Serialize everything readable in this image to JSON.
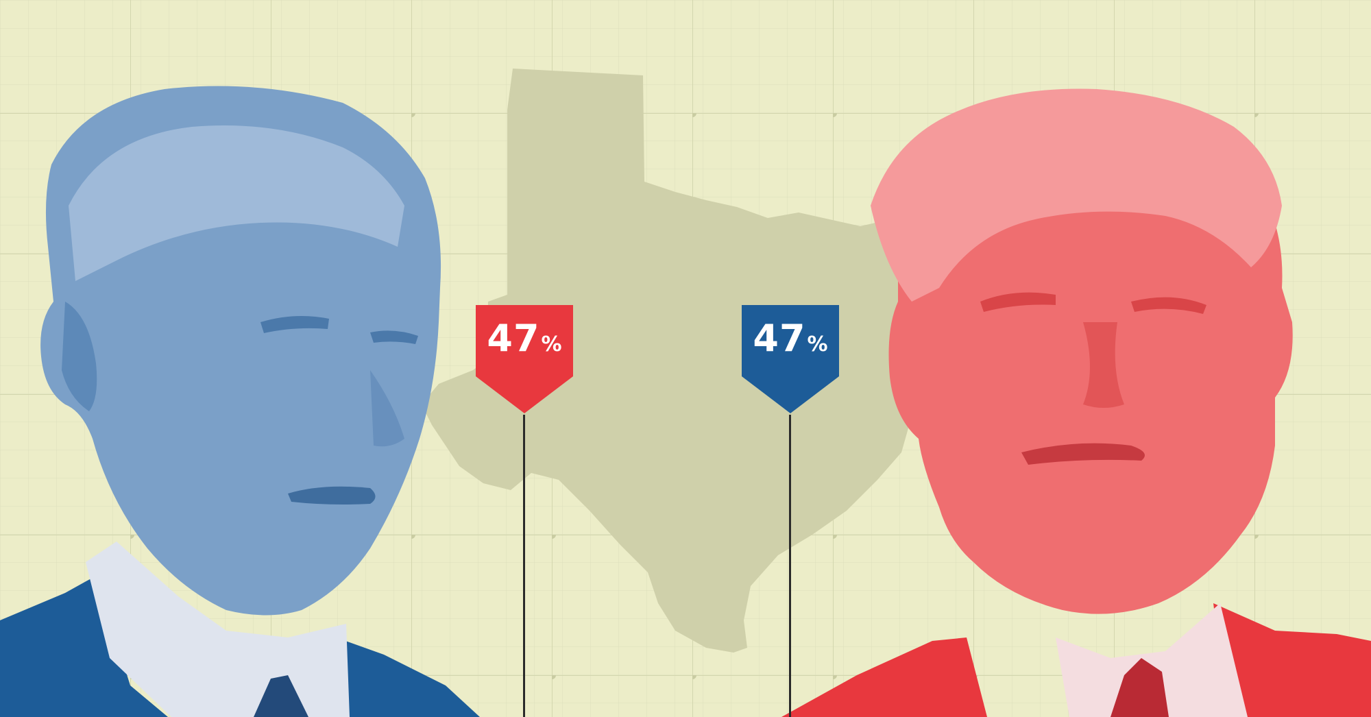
{
  "colors": {
    "background": "#ecedc8",
    "grid_line": "#d6d9b4",
    "grid_node": "#c9cca2",
    "texas_fill": "#cfd0aa",
    "democrat_blue": "#1d5c98",
    "republican_red": "#e8383e",
    "stem": "#2a2a2a"
  },
  "left_portrait": {
    "icon": "biden-portrait-blue-duotone-icon"
  },
  "right_portrait": {
    "icon": "trump-portrait-red-duotone-icon"
  },
  "map": {
    "icon": "texas-state-silhouette-icon"
  },
  "markers": [
    {
      "value": "47",
      "suffix": "%",
      "color": "#e8383e"
    },
    {
      "value": "47",
      "suffix": "%",
      "color": "#1d5c98"
    }
  ]
}
